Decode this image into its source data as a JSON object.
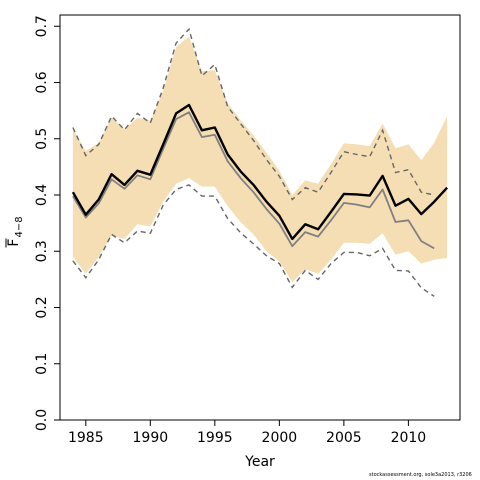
{
  "chart_data": {
    "type": "line",
    "xlabel": "Year",
    "ylabel_main": "F",
    "ylabel_sub": "4−8",
    "xlim": [
      1983,
      2014
    ],
    "ylim": [
      0,
      0.72
    ],
    "xticks": [
      "1985",
      "1990",
      "1995",
      "2000",
      "2005",
      "2010"
    ],
    "xtick_values": [
      1985,
      1990,
      1995,
      2000,
      2005,
      2010
    ],
    "yticks": [
      "0.0",
      "0.1",
      "0.2",
      "0.3",
      "0.4",
      "0.5",
      "0.6",
      "0.7"
    ],
    "ytick_values": [
      0,
      0.1,
      0.2,
      0.3,
      0.4,
      0.5,
      0.6,
      0.7
    ],
    "colors": {
      "band": "#f5deb3",
      "estimate": "#000000",
      "previous": "#808080",
      "previous_ci": "#666666"
    },
    "years": [
      1984,
      1985,
      1986,
      1987,
      1988,
      1989,
      1990,
      1991,
      1992,
      1993,
      1994,
      1995,
      1996,
      1997,
      1998,
      1999,
      2000,
      2001,
      2002,
      2003,
      2004,
      2005,
      2006,
      2007,
      2008,
      2009,
      2010,
      2011,
      2012,
      2013
    ],
    "estimate": [
      0.405,
      0.365,
      0.392,
      0.437,
      0.418,
      0.443,
      0.436,
      0.49,
      0.545,
      0.56,
      0.515,
      0.52,
      0.472,
      0.442,
      0.418,
      0.388,
      0.363,
      0.322,
      0.348,
      0.339,
      0.37,
      0.402,
      0.401,
      0.399,
      0.434,
      0.381,
      0.393,
      0.366,
      0.388,
      0.413
    ],
    "band_upper": [
      0.518,
      0.478,
      0.493,
      0.537,
      0.517,
      0.537,
      0.532,
      0.585,
      0.663,
      0.682,
      0.62,
      0.622,
      0.563,
      0.533,
      0.506,
      0.475,
      0.443,
      0.4,
      0.426,
      0.42,
      0.455,
      0.492,
      0.49,
      0.487,
      0.527,
      0.483,
      0.49,
      0.462,
      0.493,
      0.54
    ],
    "band_lower": [
      0.29,
      0.26,
      0.29,
      0.328,
      0.322,
      0.348,
      0.344,
      0.388,
      0.42,
      0.43,
      0.415,
      0.415,
      0.38,
      0.352,
      0.33,
      0.3,
      0.282,
      0.245,
      0.268,
      0.26,
      0.285,
      0.315,
      0.315,
      0.313,
      0.332,
      0.294,
      0.3,
      0.278,
      0.285,
      0.288
    ],
    "prev_years": [
      1984,
      1985,
      1986,
      1987,
      1988,
      1989,
      1990,
      1991,
      1992,
      1993,
      1994,
      1995,
      1996,
      1997,
      1998,
      1999,
      2000,
      2001,
      2002,
      2003,
      2004,
      2005,
      2006,
      2007,
      2008,
      2009,
      2010,
      2011,
      2012
    ],
    "prev_estimate": [
      0.398,
      0.36,
      0.385,
      0.428,
      0.411,
      0.435,
      0.428,
      0.482,
      0.535,
      0.547,
      0.503,
      0.507,
      0.46,
      0.43,
      0.405,
      0.375,
      0.349,
      0.309,
      0.334,
      0.326,
      0.355,
      0.386,
      0.383,
      0.378,
      0.41,
      0.352,
      0.355,
      0.318,
      0.305
    ],
    "prev_upper": [
      0.52,
      0.47,
      0.49,
      0.54,
      0.516,
      0.545,
      0.528,
      0.59,
      0.67,
      0.695,
      0.612,
      0.632,
      0.557,
      0.527,
      0.497,
      0.463,
      0.433,
      0.392,
      0.413,
      0.405,
      0.44,
      0.477,
      0.472,
      0.468,
      0.515,
      0.44,
      0.445,
      0.405,
      0.4
    ],
    "prev_lower": [
      0.283,
      0.253,
      0.285,
      0.33,
      0.315,
      0.336,
      0.332,
      0.382,
      0.41,
      0.418,
      0.398,
      0.398,
      0.358,
      0.333,
      0.313,
      0.292,
      0.278,
      0.236,
      0.266,
      0.25,
      0.278,
      0.298,
      0.298,
      0.292,
      0.305,
      0.266,
      0.265,
      0.235,
      0.22
    ]
  },
  "credit": "stockassessment.org, sole3a2013, r3206"
}
